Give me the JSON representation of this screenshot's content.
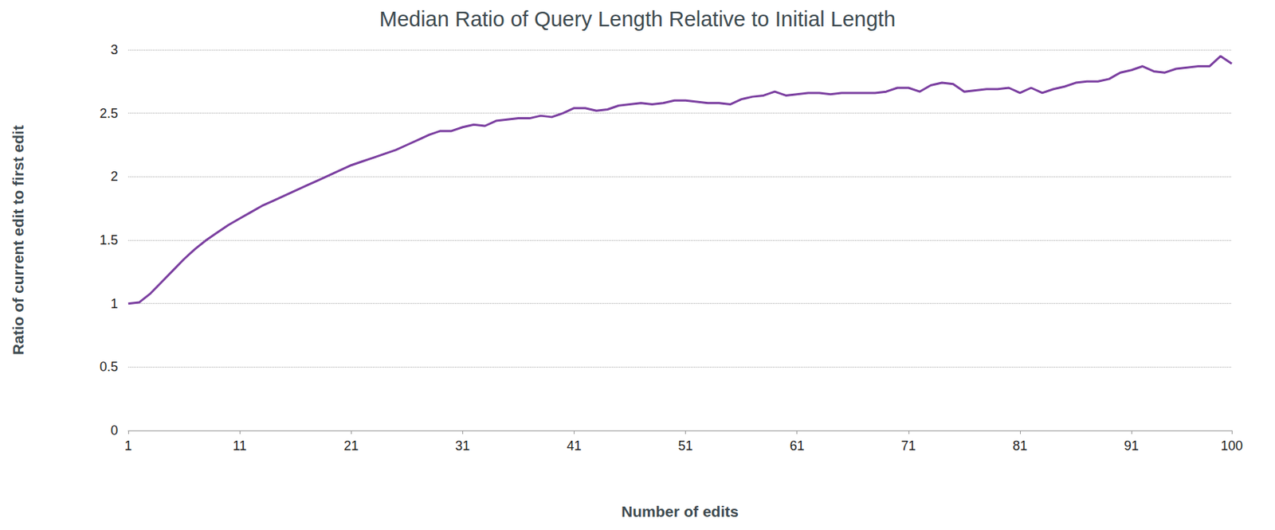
{
  "chart_data": {
    "type": "line",
    "title": "Median Ratio of Query Length Relative to Initial Length",
    "x_label": "Number of edits",
    "y_label": "Ratio of current edit to first edit",
    "x": [
      1,
      2,
      3,
      4,
      5,
      6,
      7,
      8,
      9,
      10,
      11,
      12,
      13,
      14,
      15,
      16,
      17,
      18,
      19,
      20,
      21,
      22,
      23,
      24,
      25,
      26,
      27,
      28,
      29,
      30,
      31,
      32,
      33,
      34,
      35,
      36,
      37,
      38,
      39,
      40,
      41,
      42,
      43,
      44,
      45,
      46,
      47,
      48,
      49,
      50,
      51,
      52,
      53,
      54,
      55,
      56,
      57,
      58,
      59,
      60,
      61,
      62,
      63,
      64,
      65,
      66,
      67,
      68,
      69,
      70,
      71,
      72,
      73,
      74,
      75,
      76,
      77,
      78,
      79,
      80,
      81,
      82,
      83,
      84,
      85,
      86,
      87,
      88,
      89,
      90,
      91,
      92,
      93,
      94,
      95,
      96,
      97,
      98,
      99,
      100
    ],
    "values": [
      1.0,
      1.01,
      1.08,
      1.17,
      1.26,
      1.35,
      1.43,
      1.5,
      1.56,
      1.62,
      1.67,
      1.72,
      1.77,
      1.81,
      1.85,
      1.89,
      1.93,
      1.97,
      2.01,
      2.05,
      2.09,
      2.12,
      2.15,
      2.18,
      2.21,
      2.25,
      2.29,
      2.33,
      2.36,
      2.36,
      2.39,
      2.41,
      2.4,
      2.44,
      2.45,
      2.46,
      2.46,
      2.48,
      2.47,
      2.5,
      2.54,
      2.54,
      2.52,
      2.53,
      2.56,
      2.57,
      2.58,
      2.57,
      2.58,
      2.6,
      2.6,
      2.59,
      2.58,
      2.58,
      2.57,
      2.61,
      2.63,
      2.64,
      2.67,
      2.64,
      2.65,
      2.66,
      2.66,
      2.65,
      2.66,
      2.66,
      2.66,
      2.66,
      2.67,
      2.7,
      2.7,
      2.67,
      2.72,
      2.74,
      2.73,
      2.67,
      2.68,
      2.69,
      2.69,
      2.7,
      2.66,
      2.7,
      2.66,
      2.69,
      2.71,
      2.74,
      2.75,
      2.75,
      2.77,
      2.82,
      2.84,
      2.87,
      2.83,
      2.82,
      2.85,
      2.86,
      2.87,
      2.87,
      2.95,
      2.89
    ],
    "color": "#7b3fa0",
    "xlim": [
      1,
      100
    ],
    "xticks": [
      1,
      11,
      21,
      31,
      41,
      51,
      61,
      71,
      81,
      91,
      100
    ],
    "ylim": [
      0,
      3
    ],
    "yticks": [
      0,
      0.5,
      1,
      1.5,
      2,
      2.5,
      3
    ],
    "grid": true
  }
}
